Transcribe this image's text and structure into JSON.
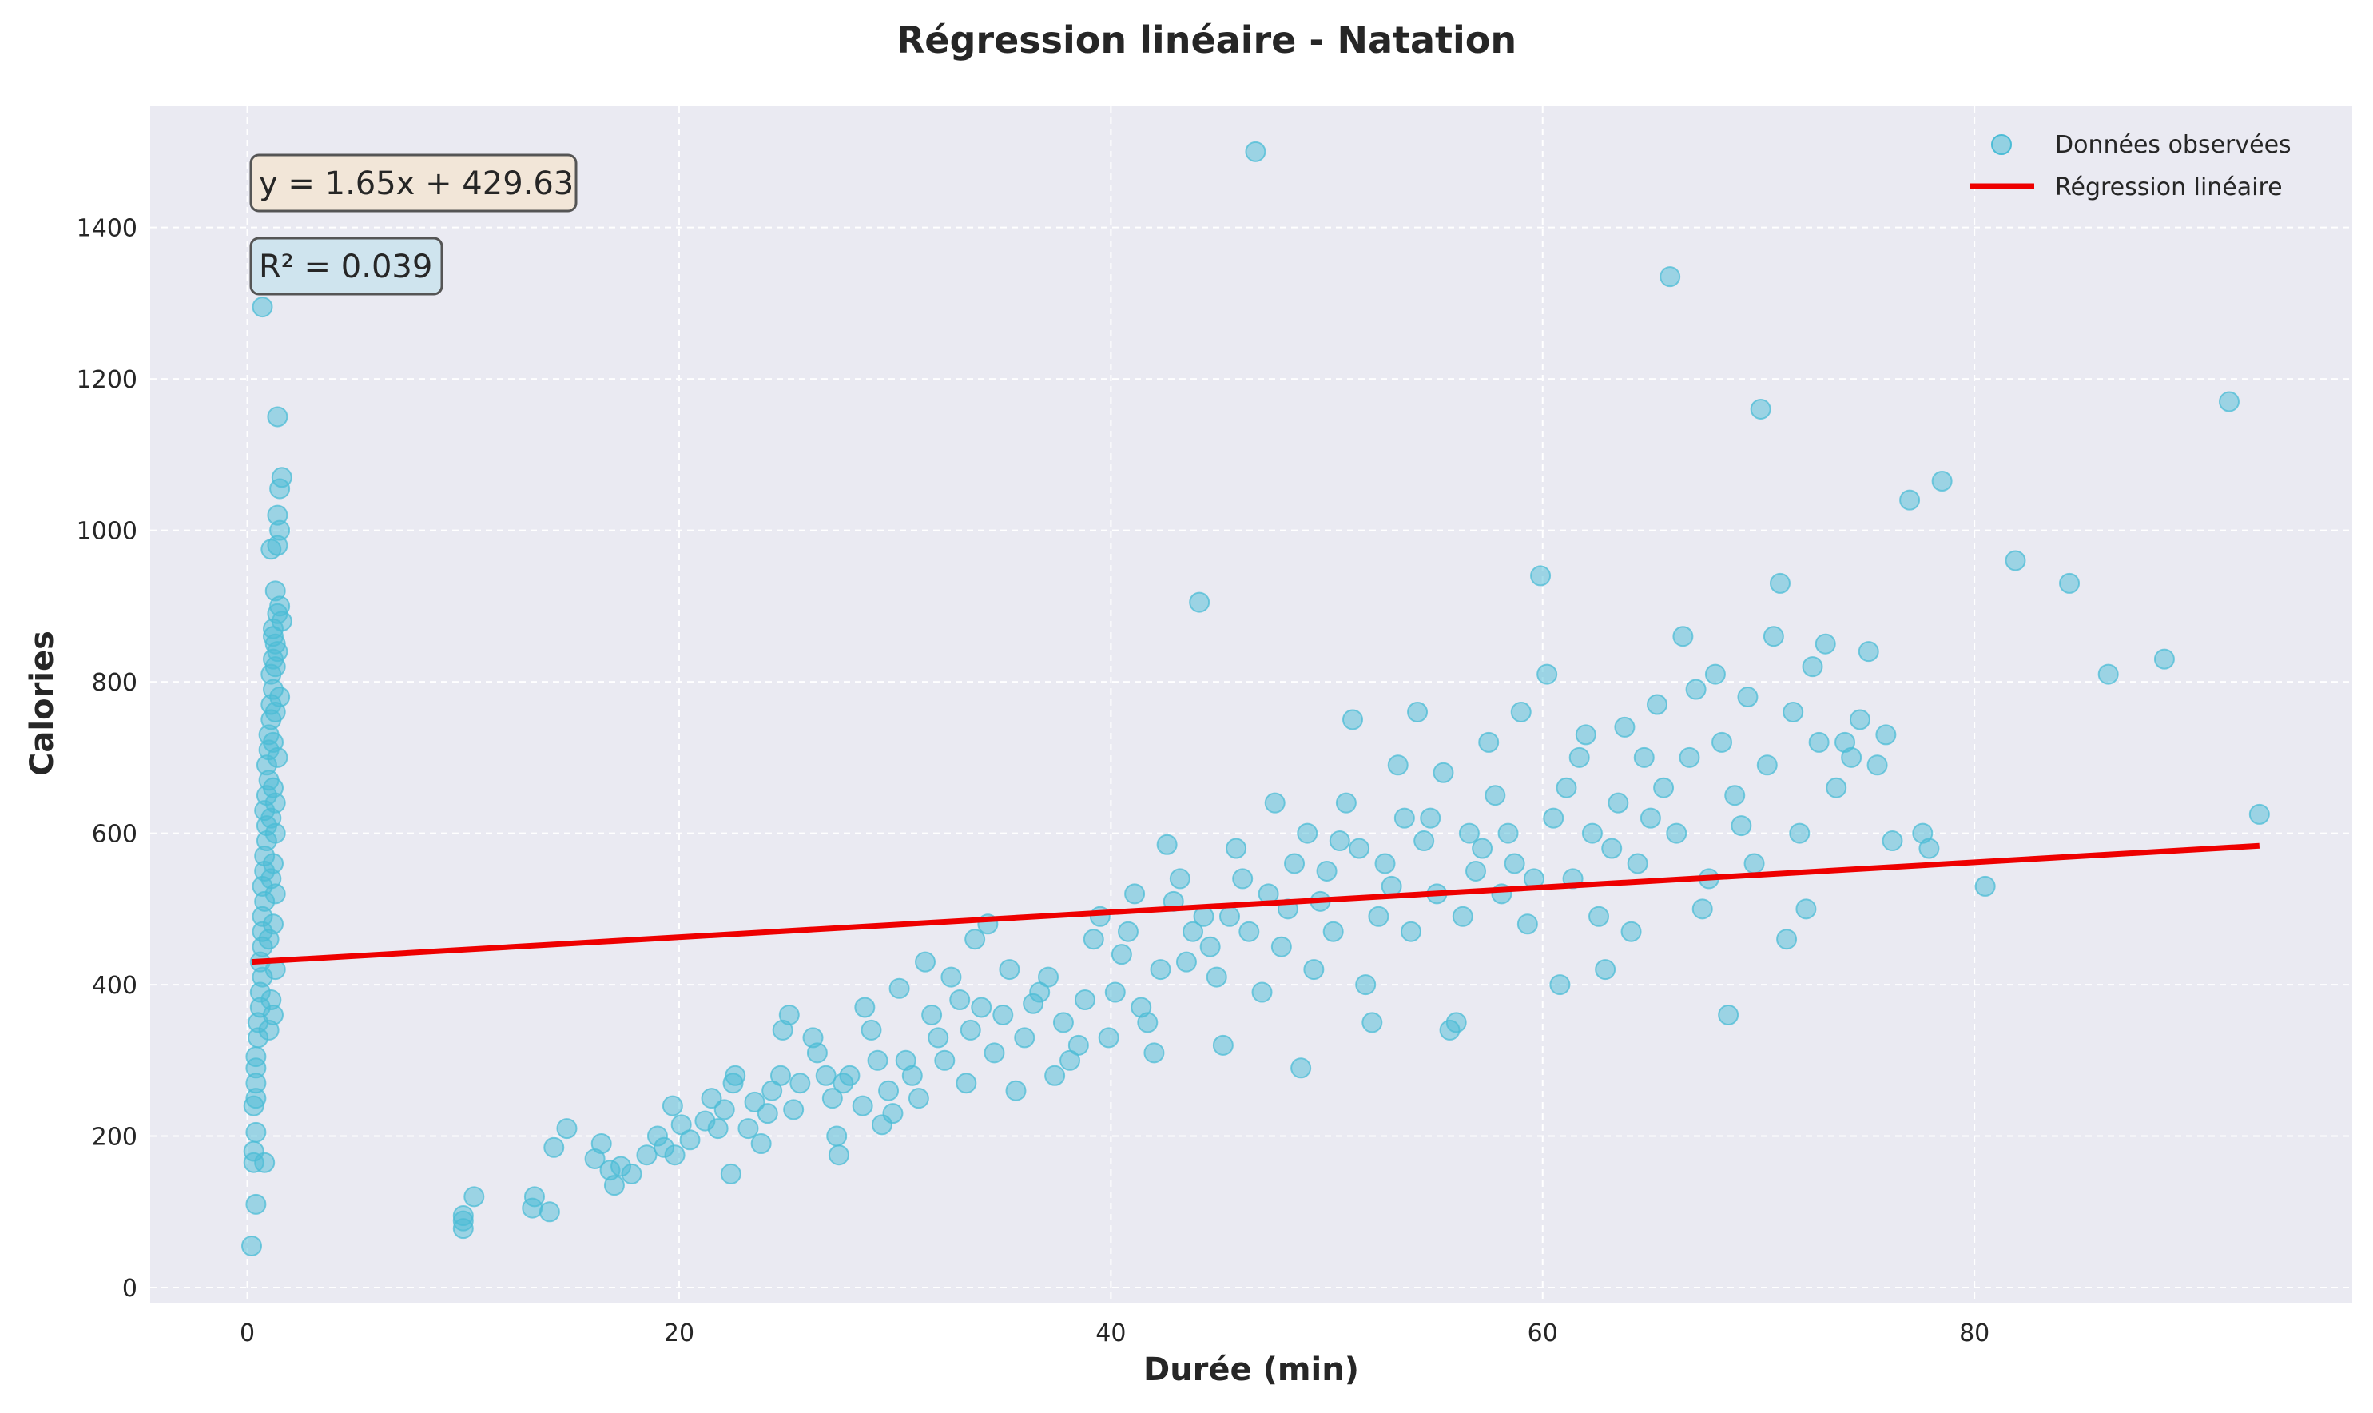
{
  "chart_data": {
    "type": "scatter",
    "title": "Régression linéaire - Natation",
    "xlabel": "Durée (min)",
    "ylabel": "Calories",
    "xlim": [
      -4.5,
      97.5
    ],
    "ylim": [
      -20,
      1560
    ],
    "xticks": [
      0,
      20,
      40,
      60,
      80
    ],
    "xtick_labels": [
      "0",
      "20",
      "40",
      "60",
      "80"
    ],
    "yticks": [
      0,
      200,
      400,
      600,
      800,
      1000,
      1200,
      1400
    ],
    "ytick_labels": [
      "0",
      "200",
      "400",
      "600",
      "800",
      "1000",
      "1200",
      "1400"
    ],
    "grid": true,
    "legend_position": "top-right",
    "colors": {
      "plot_background": "#eaeaf2",
      "grid": "#ffffff",
      "points": "#4bbcd6",
      "regression": "#ee0000",
      "equation_box": "#f2e6d8",
      "r2_box": "#cfe4ee"
    },
    "annotations": {
      "equation": "y = 1.65x + 429.63",
      "r_squared": "R² = 0.039"
    },
    "series": [
      {
        "name": "Données observées",
        "kind": "scatter",
        "points": [
          [
            0.2,
            55
          ],
          [
            0.4,
            110
          ],
          [
            0.3,
            165
          ],
          [
            0.3,
            180
          ],
          [
            0.4,
            205
          ],
          [
            0.3,
            240
          ],
          [
            0.4,
            250
          ],
          [
            0.4,
            270
          ],
          [
            0.4,
            290
          ],
          [
            0.4,
            305
          ],
          [
            0.5,
            330
          ],
          [
            0.5,
            350
          ],
          [
            0.6,
            370
          ],
          [
            0.6,
            390
          ],
          [
            0.7,
            410
          ],
          [
            0.6,
            430
          ],
          [
            0.7,
            450
          ],
          [
            0.7,
            470
          ],
          [
            0.7,
            490
          ],
          [
            0.8,
            510
          ],
          [
            0.7,
            530
          ],
          [
            0.8,
            550
          ],
          [
            0.8,
            570
          ],
          [
            0.9,
            590
          ],
          [
            0.9,
            610
          ],
          [
            0.8,
            630
          ],
          [
            0.9,
            650
          ],
          [
            1.0,
            670
          ],
          [
            0.9,
            690
          ],
          [
            1.0,
            710
          ],
          [
            1.0,
            730
          ],
          [
            1.1,
            750
          ],
          [
            1.1,
            770
          ],
          [
            1.2,
            790
          ],
          [
            1.1,
            810
          ],
          [
            1.2,
            830
          ],
          [
            1.3,
            850
          ],
          [
            1.2,
            870
          ],
          [
            1.4,
            890
          ],
          [
            1.5,
            900
          ],
          [
            1.3,
            920
          ],
          [
            1.1,
            975
          ],
          [
            1.4,
            980
          ],
          [
            1.5,
            1000
          ],
          [
            1.4,
            1020
          ],
          [
            1.5,
            1055
          ],
          [
            1.6,
            1070
          ],
          [
            1.4,
            1150
          ],
          [
            0.7,
            1295
          ],
          [
            0.8,
            165
          ],
          [
            1.0,
            340
          ],
          [
            1.2,
            360
          ],
          [
            1.1,
            380
          ],
          [
            1.3,
            420
          ],
          [
            1.0,
            460
          ],
          [
            1.2,
            480
          ],
          [
            1.3,
            520
          ],
          [
            1.1,
            540
          ],
          [
            1.2,
            560
          ],
          [
            1.3,
            600
          ],
          [
            1.1,
            620
          ],
          [
            1.3,
            640
          ],
          [
            1.2,
            660
          ],
          [
            1.4,
            700
          ],
          [
            1.2,
            720
          ],
          [
            1.3,
            760
          ],
          [
            1.5,
            780
          ],
          [
            1.3,
            820
          ],
          [
            1.4,
            840
          ],
          [
            1.2,
            860
          ],
          [
            1.6,
            880
          ],
          [
            10,
            78
          ],
          [
            10,
            88
          ],
          [
            10,
            95
          ],
          [
            10.5,
            120
          ],
          [
            13.2,
            105
          ],
          [
            13.3,
            120
          ],
          [
            14,
            100
          ],
          [
            14.2,
            185
          ],
          [
            14.8,
            210
          ],
          [
            16.1,
            170
          ],
          [
            16.4,
            190
          ],
          [
            16.8,
            155
          ],
          [
            17,
            135
          ],
          [
            17.3,
            160
          ],
          [
            17.8,
            150
          ],
          [
            18.5,
            175
          ],
          [
            19,
            200
          ],
          [
            19.3,
            185
          ],
          [
            19.8,
            175
          ],
          [
            19.7,
            240
          ],
          [
            20.1,
            215
          ],
          [
            20.5,
            195
          ],
          [
            21.2,
            220
          ],
          [
            21.5,
            250
          ],
          [
            21.8,
            210
          ],
          [
            22.1,
            235
          ],
          [
            22.4,
            150
          ],
          [
            22.5,
            270
          ],
          [
            22.6,
            280
          ],
          [
            23.2,
            210
          ],
          [
            23.5,
            245
          ],
          [
            23.8,
            190
          ],
          [
            24.1,
            230
          ],
          [
            24.3,
            260
          ],
          [
            24.7,
            280
          ],
          [
            24.8,
            340
          ],
          [
            25.1,
            360
          ],
          [
            25.3,
            235
          ],
          [
            25.6,
            270
          ],
          [
            26.2,
            330
          ],
          [
            26.4,
            310
          ],
          [
            26.8,
            280
          ],
          [
            27.1,
            250
          ],
          [
            27.3,
            200
          ],
          [
            27.4,
            175
          ],
          [
            27.6,
            270
          ],
          [
            27.9,
            280
          ],
          [
            28.5,
            240
          ],
          [
            28.6,
            370
          ],
          [
            28.9,
            340
          ],
          [
            29.2,
            300
          ],
          [
            29.4,
            215
          ],
          [
            29.7,
            260
          ],
          [
            29.9,
            230
          ],
          [
            30.2,
            395
          ],
          [
            30.5,
            300
          ],
          [
            30.8,
            280
          ],
          [
            31.1,
            250
          ],
          [
            31.4,
            430
          ],
          [
            31.7,
            360
          ],
          [
            32.0,
            330
          ],
          [
            32.3,
            300
          ],
          [
            32.6,
            410
          ],
          [
            33.0,
            380
          ],
          [
            33.3,
            270
          ],
          [
            33.5,
            340
          ],
          [
            33.7,
            460
          ],
          [
            34.0,
            370
          ],
          [
            34.3,
            480
          ],
          [
            34.6,
            310
          ],
          [
            35.0,
            360
          ],
          [
            35.3,
            420
          ],
          [
            35.6,
            260
          ],
          [
            36.0,
            330
          ],
          [
            36.4,
            375
          ],
          [
            36.7,
            390
          ],
          [
            37.1,
            410
          ],
          [
            37.4,
            280
          ],
          [
            37.8,
            350
          ],
          [
            38.1,
            300
          ],
          [
            38.5,
            320
          ],
          [
            38.8,
            380
          ],
          [
            39.2,
            460
          ],
          [
            39.5,
            490
          ],
          [
            39.9,
            330
          ],
          [
            40.2,
            390
          ],
          [
            40.5,
            440
          ],
          [
            40.8,
            470
          ],
          [
            41.1,
            520
          ],
          [
            41.4,
            370
          ],
          [
            41.7,
            350
          ],
          [
            42.0,
            310
          ],
          [
            42.3,
            420
          ],
          [
            42.6,
            585
          ],
          [
            42.9,
            510
          ],
          [
            43.2,
            540
          ],
          [
            43.5,
            430
          ],
          [
            43.8,
            470
          ],
          [
            44.1,
            905
          ],
          [
            44.3,
            490
          ],
          [
            44.6,
            450
          ],
          [
            44.9,
            410
          ],
          [
            45.2,
            320
          ],
          [
            45.5,
            490
          ],
          [
            45.8,
            580
          ],
          [
            46.1,
            540
          ],
          [
            46.4,
            470
          ],
          [
            46.7,
            1500
          ],
          [
            47.0,
            390
          ],
          [
            47.3,
            520
          ],
          [
            47.6,
            640
          ],
          [
            47.9,
            450
          ],
          [
            48.2,
            500
          ],
          [
            48.5,
            560
          ],
          [
            48.8,
            290
          ],
          [
            49.1,
            600
          ],
          [
            49.4,
            420
          ],
          [
            49.7,
            510
          ],
          [
            50.0,
            550
          ],
          [
            50.3,
            470
          ],
          [
            50.6,
            590
          ],
          [
            50.9,
            640
          ],
          [
            51.2,
            750
          ],
          [
            51.5,
            580
          ],
          [
            51.8,
            400
          ],
          [
            52.1,
            350
          ],
          [
            52.4,
            490
          ],
          [
            52.7,
            560
          ],
          [
            53.0,
            530
          ],
          [
            53.3,
            690
          ],
          [
            53.6,
            620
          ],
          [
            53.9,
            470
          ],
          [
            54.2,
            760
          ],
          [
            54.5,
            590
          ],
          [
            54.8,
            620
          ],
          [
            55.1,
            520
          ],
          [
            55.4,
            680
          ],
          [
            55.7,
            340
          ],
          [
            56.0,
            350
          ],
          [
            56.3,
            490
          ],
          [
            56.6,
            600
          ],
          [
            56.9,
            550
          ],
          [
            57.2,
            580
          ],
          [
            57.5,
            720
          ],
          [
            57.8,
            650
          ],
          [
            58.1,
            520
          ],
          [
            58.4,
            600
          ],
          [
            58.7,
            560
          ],
          [
            59.0,
            760
          ],
          [
            59.3,
            480
          ],
          [
            59.6,
            540
          ],
          [
            59.9,
            940
          ],
          [
            60.2,
            810
          ],
          [
            60.5,
            620
          ],
          [
            60.8,
            400
          ],
          [
            61.1,
            660
          ],
          [
            61.4,
            540
          ],
          [
            61.7,
            700
          ],
          [
            62.0,
            730
          ],
          [
            62.3,
            600
          ],
          [
            62.6,
            490
          ],
          [
            62.9,
            420
          ],
          [
            63.2,
            580
          ],
          [
            63.5,
            640
          ],
          [
            63.8,
            740
          ],
          [
            64.1,
            470
          ],
          [
            64.4,
            560
          ],
          [
            64.7,
            700
          ],
          [
            65.0,
            620
          ],
          [
            65.3,
            770
          ],
          [
            65.6,
            660
          ],
          [
            65.9,
            1335
          ],
          [
            66.2,
            600
          ],
          [
            66.5,
            860
          ],
          [
            66.8,
            700
          ],
          [
            67.1,
            790
          ],
          [
            67.4,
            500
          ],
          [
            67.7,
            540
          ],
          [
            68.0,
            810
          ],
          [
            68.3,
            720
          ],
          [
            68.6,
            360
          ],
          [
            68.9,
            650
          ],
          [
            69.2,
            610
          ],
          [
            69.5,
            780
          ],
          [
            69.8,
            560
          ],
          [
            70.1,
            1160
          ],
          [
            70.4,
            690
          ],
          [
            70.7,
            860
          ],
          [
            71.0,
            930
          ],
          [
            71.3,
            460
          ],
          [
            71.6,
            760
          ],
          [
            71.9,
            600
          ],
          [
            72.2,
            500
          ],
          [
            72.5,
            820
          ],
          [
            72.8,
            720
          ],
          [
            73.1,
            850
          ],
          [
            73.6,
            660
          ],
          [
            74.0,
            720
          ],
          [
            74.3,
            700
          ],
          [
            74.7,
            750
          ],
          [
            75.1,
            840
          ],
          [
            75.5,
            690
          ],
          [
            75.9,
            730
          ],
          [
            76.2,
            590
          ],
          [
            77.0,
            1040
          ],
          [
            77.6,
            600
          ],
          [
            77.9,
            580
          ],
          [
            78.5,
            1065
          ],
          [
            80.5,
            530
          ],
          [
            81.9,
            960
          ],
          [
            84.4,
            930
          ],
          [
            86.2,
            810
          ],
          [
            88.8,
            830
          ],
          [
            91.8,
            1170
          ],
          [
            93.2,
            625
          ]
        ]
      },
      {
        "name": "Régression linéaire",
        "kind": "line",
        "slope": 1.65,
        "intercept": 429.63,
        "x_range": [
          0.2,
          93.2
        ]
      }
    ]
  }
}
